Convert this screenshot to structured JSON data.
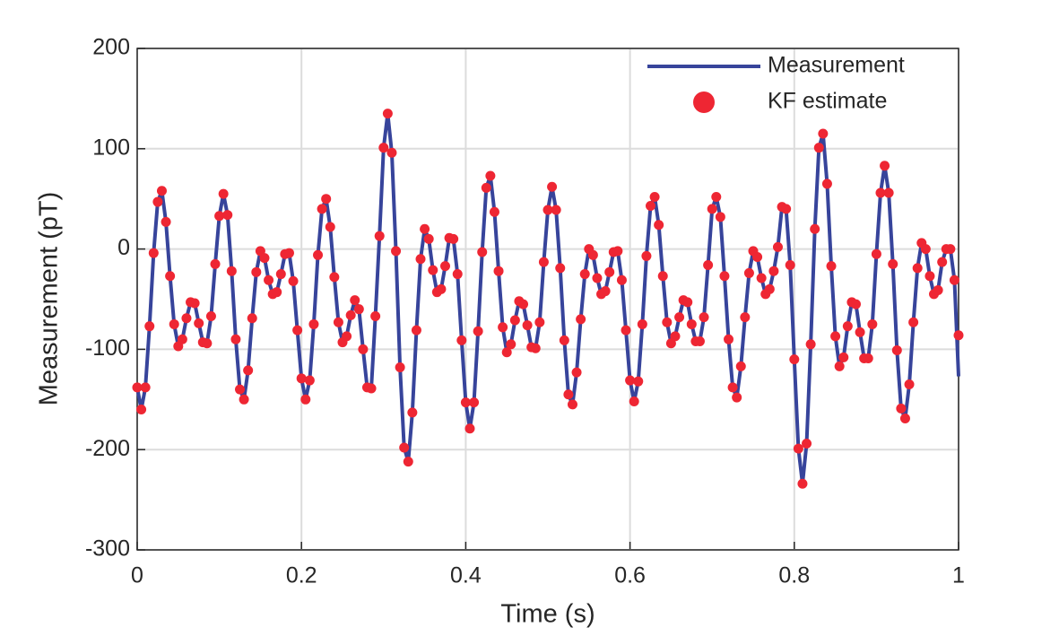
{
  "chart_data": {
    "type": "line",
    "xlabel": "Time (s)",
    "ylabel": "Measurement (pT)",
    "xlim": [
      0,
      1
    ],
    "ylim": [
      -300,
      200
    ],
    "xticks": [
      0,
      0.2,
      0.4,
      0.6,
      0.8,
      1
    ],
    "yticks": [
      -300,
      -200,
      -100,
      0,
      100,
      200
    ],
    "grid": true,
    "legend": "upper right",
    "x": [
      0,
      0.005,
      0.01,
      0.015,
      0.02,
      0.025,
      0.03,
      0.035,
      0.04,
      0.045,
      0.05,
      0.055,
      0.06,
      0.065,
      0.07,
      0.075,
      0.08,
      0.085,
      0.09,
      0.095,
      0.1,
      0.105,
      0.11,
      0.115,
      0.12,
      0.125,
      0.13,
      0.135,
      0.14,
      0.145,
      0.15,
      0.155,
      0.16,
      0.165,
      0.17,
      0.175,
      0.18,
      0.185,
      0.19,
      0.195,
      0.2,
      0.205,
      0.21,
      0.215,
      0.22,
      0.225,
      0.23,
      0.235,
      0.24,
      0.245,
      0.25,
      0.255,
      0.26,
      0.265,
      0.27,
      0.275,
      0.28,
      0.285,
      0.29,
      0.295,
      0.3,
      0.305,
      0.31,
      0.315,
      0.32,
      0.325,
      0.33,
      0.335,
      0.34,
      0.345,
      0.35,
      0.355,
      0.36,
      0.365,
      0.37,
      0.375,
      0.38,
      0.385,
      0.39,
      0.395,
      0.4,
      0.405,
      0.41,
      0.415,
      0.42,
      0.425,
      0.43,
      0.435,
      0.44,
      0.445,
      0.45,
      0.455,
      0.46,
      0.465,
      0.47,
      0.475,
      0.48,
      0.485,
      0.49,
      0.495,
      0.5,
      0.505,
      0.51,
      0.515,
      0.52,
      0.525,
      0.53,
      0.535,
      0.54,
      0.545,
      0.55,
      0.555,
      0.56,
      0.565,
      0.57,
      0.575,
      0.58,
      0.585,
      0.59,
      0.595,
      0.6,
      0.605,
      0.61,
      0.615,
      0.62,
      0.625,
      0.63,
      0.635,
      0.64,
      0.645,
      0.65,
      0.655,
      0.66,
      0.665,
      0.67,
      0.675,
      0.68,
      0.685,
      0.69,
      0.695,
      0.7,
      0.705,
      0.71,
      0.715,
      0.72,
      0.725,
      0.73,
      0.735,
      0.74,
      0.745,
      0.75,
      0.755,
      0.76,
      0.765,
      0.77,
      0.775,
      0.78,
      0.785,
      0.79,
      0.795,
      0.8,
      0.805,
      0.81,
      0.815,
      0.82,
      0.825,
      0.83,
      0.835,
      0.84,
      0.845,
      0.85,
      0.855,
      0.86,
      0.865,
      0.87,
      0.875,
      0.88,
      0.885,
      0.89,
      0.895,
      0.9,
      0.905,
      0.91,
      0.915,
      0.92,
      0.925,
      0.93,
      0.935,
      0.94,
      0.945,
      0.95,
      0.955,
      0.96,
      0.965,
      0.97,
      0.975,
      0.98,
      0.985,
      0.99,
      0.995,
      1
    ],
    "series": [
      {
        "name": "Measurement",
        "color": "#37449b",
        "style": "line",
        "values": [
          -138,
          -160,
          -138,
          -77,
          -4,
          47,
          58,
          27,
          -27,
          -75,
          -97,
          -90,
          -69,
          -53,
          -54,
          -74,
          -93,
          -94,
          -67,
          -15,
          33,
          55,
          34,
          -22,
          -90,
          -140,
          -150,
          -121,
          -69,
          -23,
          -2,
          -9,
          -31,
          -45,
          -43,
          -25,
          -5,
          -4,
          -32,
          -81,
          -129,
          -150,
          -131,
          -75,
          -6,
          40,
          50,
          22,
          -28,
          -73,
          -93,
          -87,
          -66,
          -51,
          -60,
          -100,
          -138,
          -139,
          -67,
          13,
          101,
          135,
          96,
          -2,
          -118,
          -198,
          -212,
          -163,
          -81,
          -10,
          20,
          10,
          -21,
          -43,
          -40,
          -17,
          11,
          10,
          -25,
          -91,
          -153,
          -179,
          -153,
          -82,
          -3,
          61,
          73,
          37,
          -22,
          -78,
          -103,
          -95,
          -71,
          -52,
          -55,
          -76,
          -98,
          -99,
          -73,
          -13,
          39,
          62,
          39,
          -19,
          -91,
          -145,
          -155,
          -123,
          -70,
          -25,
          0,
          -6,
          -29,
          -45,
          -42,
          -23,
          -3,
          -2,
          -31,
          -81,
          -131,
          -152,
          -132,
          -75,
          -7,
          43,
          52,
          24,
          -27,
          -73,
          -94,
          -87,
          -68,
          -51,
          -53,
          -75,
          -92,
          -92,
          -68,
          -16,
          40,
          52,
          32,
          -27,
          -90,
          -138,
          -148,
          -117,
          -68,
          -24,
          -2,
          -8,
          -29,
          -45,
          -40,
          -22,
          2,
          42,
          40,
          -16,
          -110,
          -199,
          -234,
          -194,
          -95,
          20,
          101,
          115,
          65,
          -17,
          -87,
          -117,
          -108,
          -77,
          -53,
          -55,
          -83,
          -109,
          -109,
          -75,
          -5,
          56,
          83,
          56,
          -15,
          -101,
          -159,
          -169,
          -135,
          -73,
          -19,
          6,
          0,
          -27,
          -45,
          -41,
          -13,
          0,
          0,
          -31,
          -127
        ]
      },
      {
        "name": "KF estimate",
        "color": "#ee2633",
        "style": "marker",
        "values": [
          -138,
          -160,
          -138,
          -77,
          -4,
          47,
          58,
          27,
          -27,
          -75,
          -97,
          -90,
          -69,
          -53,
          -54,
          -74,
          -93,
          -94,
          -67,
          -15,
          33,
          55,
          34,
          -22,
          -90,
          -140,
          -150,
          -121,
          -69,
          -23,
          -2,
          -9,
          -31,
          -45,
          -43,
          -25,
          -5,
          -4,
          -32,
          -81,
          -129,
          -150,
          -131,
          -75,
          -6,
          40,
          50,
          22,
          -28,
          -73,
          -93,
          -87,
          -66,
          -51,
          -60,
          -100,
          -138,
          -139,
          -67,
          13,
          101,
          135,
          96,
          -2,
          -118,
          -198,
          -212,
          -163,
          -81,
          -10,
          20,
          10,
          -21,
          -43,
          -40,
          -17,
          11,
          10,
          -25,
          -91,
          -153,
          -179,
          -153,
          -82,
          -3,
          61,
          73,
          37,
          -22,
          -78,
          -103,
          -95,
          -71,
          -52,
          -55,
          -76,
          -98,
          -99,
          -73,
          -13,
          39,
          62,
          39,
          -19,
          -91,
          -145,
          -155,
          -123,
          -70,
          -25,
          0,
          -6,
          -29,
          -45,
          -42,
          -23,
          -3,
          -2,
          -31,
          -81,
          -131,
          -152,
          -132,
          -75,
          -7,
          43,
          52,
          24,
          -27,
          -73,
          -94,
          -87,
          -68,
          -51,
          -53,
          -75,
          -92,
          -92,
          -68,
          -16,
          40,
          52,
          32,
          -27,
          -90,
          -138,
          -148,
          -117,
          -68,
          -24,
          -2,
          -8,
          -29,
          -45,
          -40,
          -22,
          2,
          42,
          40,
          -16,
          -110,
          -199,
          -234,
          -194,
          -95,
          20,
          101,
          115,
          65,
          -17,
          -87,
          -117,
          -108,
          -77,
          -53,
          -55,
          -83,
          -109,
          -109,
          -75,
          -5,
          56,
          83,
          56,
          -15,
          -101,
          -159,
          -169,
          -135,
          -73,
          -19,
          6,
          0,
          -27,
          -45,
          -41,
          -13,
          0,
          0,
          -31,
          -86
        ]
      }
    ]
  }
}
